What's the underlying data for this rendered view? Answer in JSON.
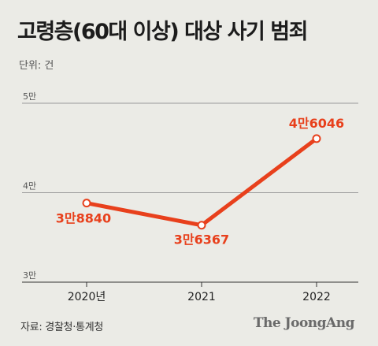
{
  "chart_data": {
    "type": "line",
    "title": "고령층(60대 이상) 대상 사기 범죄",
    "unit_label": "단위: 건",
    "x": [
      "2020년",
      "2021",
      "2022"
    ],
    "series": [
      {
        "values": [
          38840,
          36367,
          46046
        ],
        "data_labels": [
          "3만8840",
          "3만6367",
          "4만6046"
        ],
        "color": "#e8401c"
      }
    ],
    "yticks": [
      30000,
      40000,
      50000
    ],
    "ytick_labels": [
      "3만",
      "4만",
      "5만"
    ],
    "ylim": [
      30000,
      50000
    ],
    "grid": true,
    "source": "자료: 경찰청·통계청",
    "brand": "The JoongAng"
  }
}
